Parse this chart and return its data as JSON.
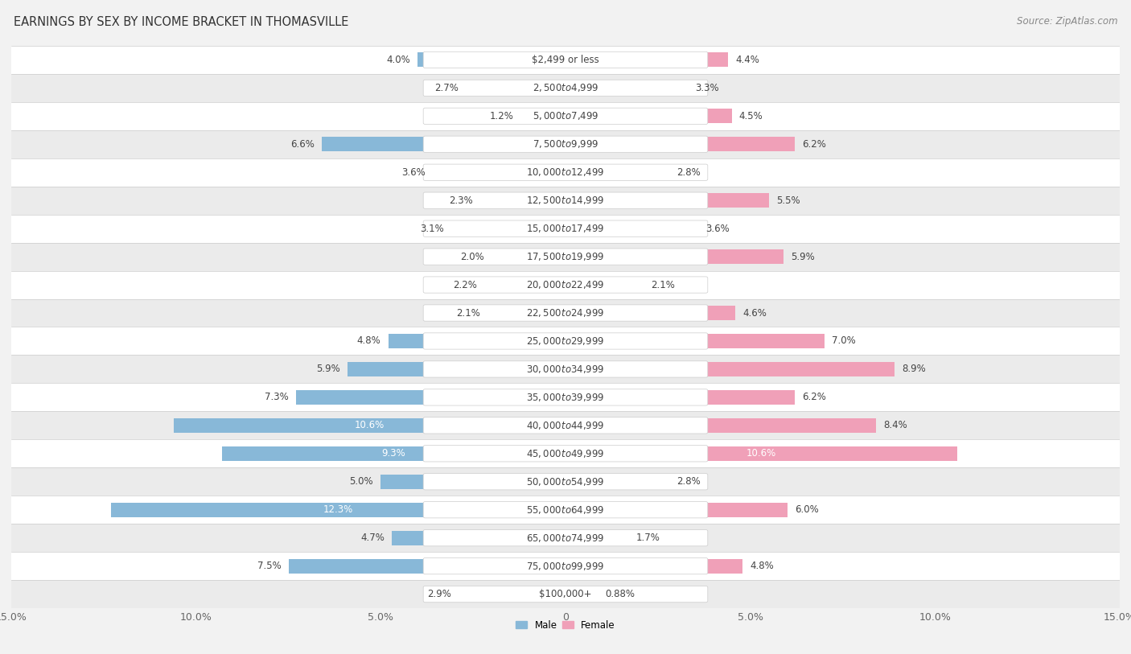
{
  "title": "EARNINGS BY SEX BY INCOME BRACKET IN THOMASVILLE",
  "source": "Source: ZipAtlas.com",
  "categories": [
    "$2,499 or less",
    "$2,500 to $4,999",
    "$5,000 to $7,499",
    "$7,500 to $9,999",
    "$10,000 to $12,499",
    "$12,500 to $14,999",
    "$15,000 to $17,499",
    "$17,500 to $19,999",
    "$20,000 to $22,499",
    "$22,500 to $24,999",
    "$25,000 to $29,999",
    "$30,000 to $34,999",
    "$35,000 to $39,999",
    "$40,000 to $44,999",
    "$45,000 to $49,999",
    "$50,000 to $54,999",
    "$55,000 to $64,999",
    "$65,000 to $74,999",
    "$75,000 to $99,999",
    "$100,000+"
  ],
  "male_values": [
    4.0,
    2.7,
    1.2,
    6.6,
    3.6,
    2.3,
    3.1,
    2.0,
    2.2,
    2.1,
    4.8,
    5.9,
    7.3,
    10.6,
    9.3,
    5.0,
    12.3,
    4.7,
    7.5,
    2.9
  ],
  "female_values": [
    4.4,
    3.3,
    4.5,
    6.2,
    2.8,
    5.5,
    3.6,
    5.9,
    2.1,
    4.6,
    7.0,
    8.9,
    6.2,
    8.4,
    10.6,
    2.8,
    6.0,
    1.7,
    4.8,
    0.88
  ],
  "male_color": "#88b8d8",
  "female_color": "#f0a0b8",
  "male_label": "Male",
  "female_label": "Female",
  "xlim": 15.0,
  "row_color_odd": "#f5f5f5",
  "row_color_even": "#e8e8e8",
  "title_fontsize": 10.5,
  "source_fontsize": 8.5,
  "label_fontsize": 8.5,
  "value_fontsize": 8.5,
  "axis_fontsize": 9,
  "cat_label_fontsize": 8.5
}
